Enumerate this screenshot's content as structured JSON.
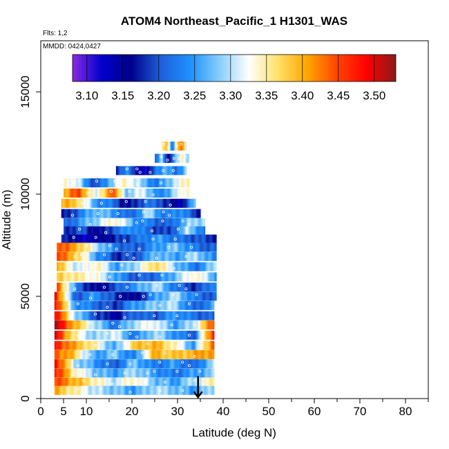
{
  "chart_data": {
    "type": "heatmap",
    "title": "ATOM4 Northeast_Pacific_1 H1301_WAS",
    "subtitle_flights": "Flts: 1,2",
    "subtitle_dates": "MMDD: 0424,0427",
    "xlabel": "Latitude (deg N)",
    "ylabel": "Altitude (m)",
    "xlim": [
      0,
      85
    ],
    "ylim": [
      0,
      17500
    ],
    "xticks": [
      {
        "value": 0,
        "label": "0"
      },
      {
        "value": 5,
        "label": "5"
      },
      {
        "value": 10,
        "label": "10"
      },
      {
        "value": 20,
        "label": "20"
      },
      {
        "value": 30,
        "label": "30"
      },
      {
        "value": 40,
        "label": "40"
      },
      {
        "value": 50,
        "label": "50"
      },
      {
        "value": 60,
        "label": "60"
      },
      {
        "value": 70,
        "label": "70"
      },
      {
        "value": 80,
        "label": "80"
      }
    ],
    "xminor_ticks": [
      5,
      15,
      25,
      35,
      45,
      55,
      65,
      75,
      85
    ],
    "yticks": [
      {
        "value": 0,
        "label": "0"
      },
      {
        "value": 5000,
        "label": "5000"
      },
      {
        "value": 10000,
        "label": "10000"
      },
      {
        "value": 15000,
        "label": "15000"
      }
    ],
    "colorbar": {
      "range": [
        3.08,
        3.53
      ],
      "labels": [
        {
          "value": 3.1,
          "label": "3.10"
        },
        {
          "value": 3.15,
          "label": "3.15"
        },
        {
          "value": 3.2,
          "label": "3.20"
        },
        {
          "value": 3.25,
          "label": "3.25"
        },
        {
          "value": 3.3,
          "label": "3.30"
        },
        {
          "value": 3.35,
          "label": "3.35"
        },
        {
          "value": 3.4,
          "label": "3.40"
        },
        {
          "value": 3.45,
          "label": "3.45"
        },
        {
          "value": 3.5,
          "label": "3.50"
        }
      ],
      "colors": [
        "#8a2be2",
        "#0000cd",
        "#00008b",
        "#1e5fd8",
        "#1e90ff",
        "#87cefa",
        "#ffffff",
        "#ffe066",
        "#ffa500",
        "#ff4500",
        "#ff0000",
        "#8b1a1a"
      ]
    },
    "arrow_marker": {
      "lat": 34.5,
      "alt": 700
    },
    "bands": [
      {
        "alt": 12350,
        "lat": [
          26.5,
          32.0
        ],
        "v": [
          3.33,
          3.4,
          3.22,
          3.35,
          3.45,
          3.3
        ]
      },
      {
        "alt": 11750,
        "lat": [
          25.0,
          32.5
        ],
        "v": [
          3.2,
          3.3,
          3.15,
          3.25,
          3.35,
          3.3
        ]
      },
      {
        "alt": 11150,
        "lat": [
          16.5,
          32.0
        ],
        "v": [
          3.18,
          3.25,
          3.15,
          3.13,
          3.22,
          3.28,
          3.2,
          3.3
        ]
      },
      {
        "alt": 10550,
        "lat": [
          5.0,
          32.5
        ],
        "v": [
          3.35,
          3.3,
          3.18,
          3.28,
          3.35,
          3.28,
          3.22,
          3.3,
          3.35
        ]
      },
      {
        "alt": 10050,
        "lat": [
          5.0,
          33.0
        ],
        "v": [
          3.4,
          3.45,
          3.3,
          3.45,
          3.28,
          3.32,
          3.22,
          3.3,
          3.35
        ]
      },
      {
        "alt": 9550,
        "lat": [
          4.5,
          34.0
        ],
        "v": [
          3.4,
          3.38,
          3.25,
          3.22,
          3.15,
          3.22,
          3.2,
          3.13,
          3.28
        ]
      },
      {
        "alt": 9050,
        "lat": [
          4.5,
          35.0
        ],
        "v": [
          3.15,
          3.22,
          3.28,
          3.25,
          3.2,
          3.3,
          3.22,
          3.25,
          3.15
        ]
      },
      {
        "alt": 8600,
        "lat": [
          5.0,
          36.0
        ],
        "v": [
          3.2,
          3.25,
          3.3,
          3.35,
          3.25,
          3.22,
          3.2,
          3.28,
          3.3
        ]
      },
      {
        "alt": 8200,
        "lat": [
          5.0,
          36.0
        ],
        "v": [
          3.18,
          3.2,
          3.15,
          3.22,
          3.25,
          3.2,
          3.18,
          3.3,
          3.22
        ]
      },
      {
        "alt": 7800,
        "lat": [
          4.5,
          38.5
        ],
        "v": [
          3.2,
          3.13,
          3.15,
          3.18,
          3.22,
          3.25,
          3.22,
          3.2,
          3.18
        ]
      },
      {
        "alt": 7400,
        "lat": [
          3.5,
          38.5
        ],
        "v": [
          3.45,
          3.4,
          3.3,
          3.22,
          3.2,
          3.25,
          3.28,
          3.22,
          3.2
        ]
      },
      {
        "alt": 6950,
        "lat": [
          3.5,
          38.5
        ],
        "v": [
          3.45,
          3.38,
          3.25,
          3.18,
          3.2,
          3.28,
          3.25,
          3.3,
          3.22
        ]
      },
      {
        "alt": 6450,
        "lat": [
          3.5,
          38.5
        ],
        "v": [
          3.4,
          3.3,
          3.35,
          3.25,
          3.3,
          3.38,
          3.28,
          3.22,
          3.3
        ]
      },
      {
        "alt": 5950,
        "lat": [
          3.5,
          38.5
        ],
        "v": [
          3.38,
          3.35,
          3.33,
          3.25,
          3.2,
          3.22,
          3.28,
          3.35,
          3.25
        ]
      },
      {
        "alt": 5450,
        "lat": [
          3.5,
          38.5
        ],
        "v": [
          3.45,
          3.22,
          3.15,
          3.2,
          3.25,
          3.3,
          3.22,
          3.18,
          3.25
        ]
      },
      {
        "alt": 5000,
        "lat": [
          3.0,
          38.5
        ],
        "v": [
          3.5,
          3.2,
          3.25,
          3.18,
          3.15,
          3.25,
          3.3,
          3.22,
          3.2
        ]
      },
      {
        "alt": 4550,
        "lat": [
          3.0,
          38.0
        ],
        "v": [
          3.5,
          3.25,
          3.22,
          3.18,
          3.25,
          3.28,
          3.3,
          3.2,
          3.25
        ]
      },
      {
        "alt": 4050,
        "lat": [
          3.0,
          38.0
        ],
        "v": [
          3.5,
          3.3,
          3.2,
          3.15,
          3.22,
          3.2,
          3.25,
          3.22,
          3.2
        ]
      },
      {
        "alt": 3600,
        "lat": [
          3.0,
          38.0
        ],
        "v": [
          3.52,
          3.4,
          3.3,
          3.22,
          3.3,
          3.33,
          3.25,
          3.3,
          3.45
        ]
      },
      {
        "alt": 3100,
        "lat": [
          3.0,
          38.0
        ],
        "v": [
          3.5,
          3.35,
          3.28,
          3.32,
          3.22,
          3.3,
          3.25,
          3.2,
          3.48
        ]
      },
      {
        "alt": 2600,
        "lat": [
          3.0,
          38.0
        ],
        "v": [
          3.48,
          3.4,
          3.35,
          3.25,
          3.38,
          3.4,
          3.35,
          3.25,
          3.45
        ]
      },
      {
        "alt": 2150,
        "lat": [
          3.0,
          38.0
        ],
        "v": [
          3.45,
          3.38,
          3.25,
          3.28,
          3.22,
          3.4,
          3.38,
          3.4,
          3.42
        ]
      },
      {
        "alt": 1700,
        "lat": [
          3.0,
          38.0
        ],
        "v": [
          3.5,
          3.3,
          3.25,
          3.2,
          3.28,
          3.22,
          3.25,
          3.2,
          3.3
        ]
      },
      {
        "alt": 1250,
        "lat": [
          3.0,
          38.0
        ],
        "v": [
          3.48,
          3.35,
          3.28,
          3.25,
          3.3,
          3.25,
          3.22,
          3.25,
          3.28
        ]
      },
      {
        "alt": 800,
        "lat": [
          3.0,
          38.0
        ],
        "v": [
          3.45,
          3.4,
          3.35,
          3.3,
          3.35,
          3.28,
          3.25,
          3.3,
          3.35
        ]
      },
      {
        "alt": 400,
        "lat": [
          3.0,
          38.0
        ],
        "v": [
          3.4,
          3.35,
          3.3,
          3.28,
          3.25,
          3.3,
          3.28,
          3.25,
          3.3
        ]
      }
    ]
  }
}
